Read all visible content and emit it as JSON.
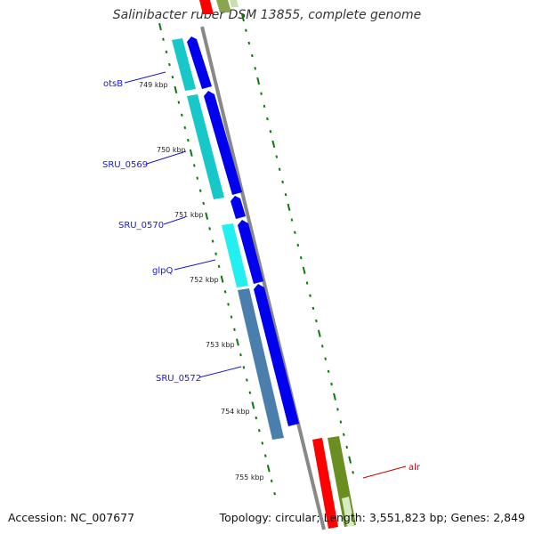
{
  "title": "Salinibacter ruber DSM 13855, complete genome",
  "footer": {
    "accession": "Accession: NC_007677",
    "summary": "Topology: circular; Length: 3,551,823 bp; Genes: 2,849"
  },
  "colors": {
    "cds_forward": "#0000ee",
    "gene_cyan": "#16c8c8",
    "gene_cyan_bright": "#22f0f0",
    "gene_steel": "#4a7fad",
    "label_blue": "#1a1acc",
    "label_red": "#cc0000",
    "rna_red": "#ff0000",
    "rna_olive": "#6b8e23",
    "backbone": "#888888",
    "tick_green": "#0a7a0a"
  },
  "genes": [
    {
      "name": "otsB",
      "color": "blue"
    },
    {
      "name": "SRU_0569",
      "color": "blue"
    },
    {
      "name": "SRU_0570",
      "color": "blue"
    },
    {
      "name": "glpQ",
      "color": "blue"
    },
    {
      "name": "SRU_0572",
      "color": "blue"
    },
    {
      "name": "alr",
      "color": "red"
    }
  ],
  "ticks": [
    {
      "label": "749 kbp"
    },
    {
      "label": "750 kbp"
    },
    {
      "label": "751 kbp"
    },
    {
      "label": "752 kbp"
    },
    {
      "label": "753 kbp"
    },
    {
      "label": "754 kbp"
    },
    {
      "label": "755 kbp"
    }
  ]
}
